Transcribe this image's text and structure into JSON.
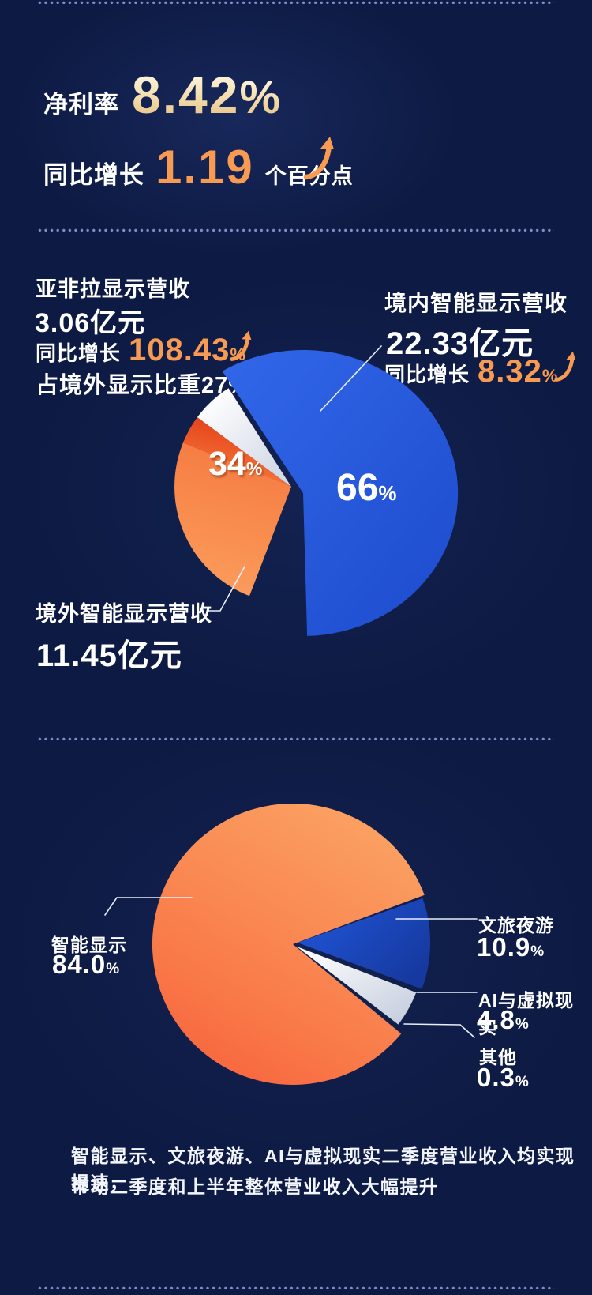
{
  "colors": {
    "background": "#0d1a43",
    "accent_orange": "#f79a52",
    "gold_text_top": "#fff8e6",
    "gold_text_bottom": "#e4bc7e",
    "pie_blue": "#2a5ce0",
    "pie_orange": "#f9914f",
    "pie_red": "#e8431d",
    "pie_white": "#f4f5f7",
    "dot_separator": "#7e8ec8",
    "callout_line": "#e8eefb"
  },
  "net_margin": {
    "label": "净利率",
    "value": "8.42",
    "unit": "%",
    "growth_label": "同比增长",
    "growth_value": "1.19",
    "growth_suffix": "个百分点"
  },
  "regional": {
    "asia_africa_latam": {
      "title": "亚非拉显示营收",
      "amount": "3.06亿元",
      "growth_label": "同比增长",
      "growth_value": "108.43",
      "growth_unit": "%",
      "share_note": "占境外显示比重27%"
    },
    "domestic": {
      "title": "境内智能显示营收",
      "amount": "22.33亿元",
      "growth_label": "同比增长",
      "growth_value": "8.32",
      "growth_unit": "%"
    },
    "overseas": {
      "title": "境外智能显示营收",
      "amount": "11.45亿元"
    },
    "pie": {
      "domestic_pct": "66",
      "overseas_pct": "34",
      "unit": "%"
    }
  },
  "business_mix": {
    "smart_display": {
      "label": "智能显示",
      "value": "84.0",
      "unit": "%"
    },
    "culture_tourism": {
      "label": "文旅夜游",
      "value": "10.9",
      "unit": "%"
    },
    "ai_vr": {
      "label": "AI与虚拟现实",
      "value": "4.8",
      "unit": "%"
    },
    "other": {
      "label": "其他",
      "value": "0.3",
      "unit": "%"
    }
  },
  "footer": {
    "line1": "智能显示、文旅夜游、AI与虚拟现实二季度营业收入均实现提速，",
    "line2": "带动二季度和上半年整体营业收入大幅提升"
  },
  "chart_data": [
    {
      "type": "pie",
      "categories": [
        "境内智能显示营收",
        "境外智能显示营收"
      ],
      "values": [
        66,
        34
      ],
      "unit": "%",
      "slices": [
        {
          "label": "境内智能显示营收",
          "value_pct": 66,
          "amount": "22.33亿元",
          "growth_yoy_pct": 8.32,
          "color": "#2a5ce0"
        },
        {
          "label": "境外智能显示营收",
          "value_pct": 34,
          "amount": "11.45亿元",
          "color": "#f9914f",
          "sub_segment": {
            "label": "亚非拉显示营收",
            "amount": "3.06亿元",
            "growth_yoy_pct": 108.43,
            "share_of_overseas_pct": 27
          }
        }
      ],
      "legend_position": "callout",
      "style": "exploded, peeled corner highlight"
    },
    {
      "type": "pie",
      "categories": [
        "智能显示",
        "文旅夜游",
        "AI与虚拟现实",
        "其他"
      ],
      "values": [
        84.0,
        10.9,
        4.8,
        0.3
      ],
      "unit": "%",
      "slices": [
        {
          "label": "智能显示",
          "value_pct": 84.0,
          "color": "#f98b50"
        },
        {
          "label": "文旅夜游",
          "value_pct": 10.9,
          "color": "#1d52d3"
        },
        {
          "label": "AI与虚拟现实",
          "value_pct": 4.8,
          "color": "#f4f5f7"
        },
        {
          "label": "其他",
          "value_pct": 0.3,
          "color": "#e9edf5"
        }
      ],
      "legend_position": "callout",
      "style": "exploded, peeled corner highlight"
    }
  ]
}
